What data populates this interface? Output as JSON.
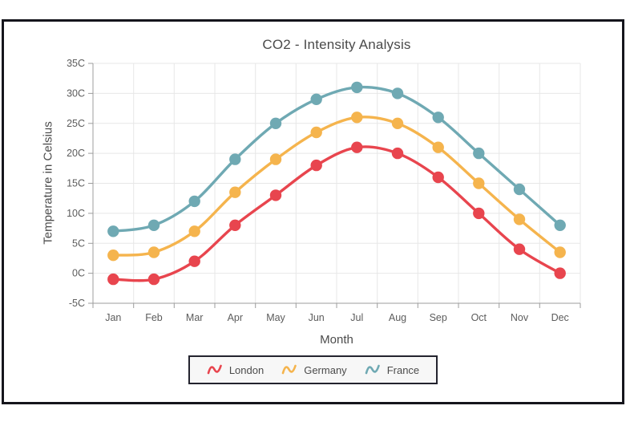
{
  "window": {
    "background": "#ffffff",
    "frame_border_color": "#15151c"
  },
  "chart_data": {
    "type": "line",
    "curve": "spline",
    "marker": "circle",
    "title": "CO2 - Intensity Analysis",
    "xlabel": "Month",
    "ylabel": "Temperature in Celsius",
    "categories": [
      "Jan",
      "Feb",
      "Mar",
      "Apr",
      "May",
      "Jun",
      "Jul",
      "Aug",
      "Sep",
      "Oct",
      "Nov",
      "Dec"
    ],
    "series": [
      {
        "name": "London",
        "color": "#e8454e",
        "values": [
          -1,
          -1,
          2,
          8,
          13,
          18,
          21,
          20,
          16,
          10,
          4,
          0
        ]
      },
      {
        "name": "Germany",
        "color": "#f5b44d",
        "values": [
          3,
          3.5,
          7,
          13.5,
          19,
          23.5,
          26,
          25,
          21,
          15,
          9,
          3.5
        ]
      },
      {
        "name": "France",
        "color": "#6fa9b3",
        "values": [
          7,
          8,
          12,
          19,
          25,
          29,
          31,
          30,
          26,
          20,
          14,
          8
        ]
      }
    ],
    "ylim": [
      -5,
      35
    ],
    "ytick_step": 5,
    "ytick_labels": [
      "35C",
      "30C",
      "25C",
      "20C",
      "15C",
      "10C",
      "5C",
      "0C",
      "-5C"
    ],
    "grid": true,
    "legend_position": "bottom",
    "grid_color": "#e7e7e7",
    "axis_line_color": "#9c9c9c",
    "label_color": "#5c5c5c"
  }
}
